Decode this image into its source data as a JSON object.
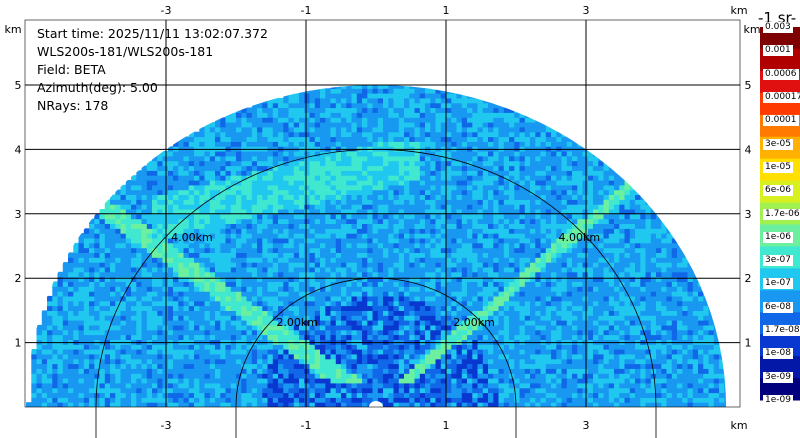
{
  "window": {
    "title": ""
  },
  "header": {
    "start_time": "Start time: 2025/11/11 13:02:07.372",
    "instrument": "WLS200s-181/WLS200s-181",
    "field": "Field: BETA",
    "azimuth": "Azimuth(deg): 5.00",
    "nrays": "NRays: 178"
  },
  "chart_data": {
    "type": "heatmap",
    "subtype": "RHI range-height display",
    "title": "",
    "xlabel": "km",
    "ylabel": "km",
    "xlim": [
      -5.4,
      5.4
    ],
    "ylim": [
      0,
      5.5
    ],
    "x_ticks": [
      -3,
      -1,
      1,
      3
    ],
    "x_tick_labels": [
      "-3",
      "-1",
      "1",
      "3"
    ],
    "y_ticks": [
      1,
      2,
      3,
      4,
      5
    ],
    "y_tick_labels": [
      "1",
      "2",
      "3",
      "4",
      "5"
    ],
    "axis_unit_label": "km",
    "range_rings_km": [
      2.0,
      4.0
    ],
    "range_ring_labels": [
      "2.00km",
      "4.00km"
    ],
    "max_range_km": 5.0,
    "grid": true,
    "colorbar": {
      "title": "-1 sr-",
      "position": "right",
      "scale": "log",
      "labels": [
        "0.003",
        "0.001",
        "0.0006",
        "0.00017",
        "0.0001",
        "3e-05",
        "1e-05",
        "6e-06",
        "1.7e-06",
        "1e-06",
        "3e-07",
        "1e-07",
        "6e-08",
        "1.7e-08",
        "1e-08",
        "3e-09",
        "1e-09"
      ],
      "colors": [
        "#7f0000",
        "#b00000",
        "#e01010",
        "#ff3a00",
        "#ff7a00",
        "#ffb000",
        "#ffe000",
        "#d8f020",
        "#a0f050",
        "#6cf0a0",
        "#40e8d0",
        "#20c8f0",
        "#1898f0",
        "#1068e8",
        "#0838d0",
        "#0418a8",
        "#00007f"
      ]
    },
    "features": [
      {
        "name": "background",
        "level_index": 12
      },
      {
        "name": "strong-return-left-beam",
        "level_index": 10
      },
      {
        "name": "strong-return-right-beam",
        "level_index": 9
      },
      {
        "name": "layer-aloft",
        "level_index": 10
      }
    ]
  }
}
